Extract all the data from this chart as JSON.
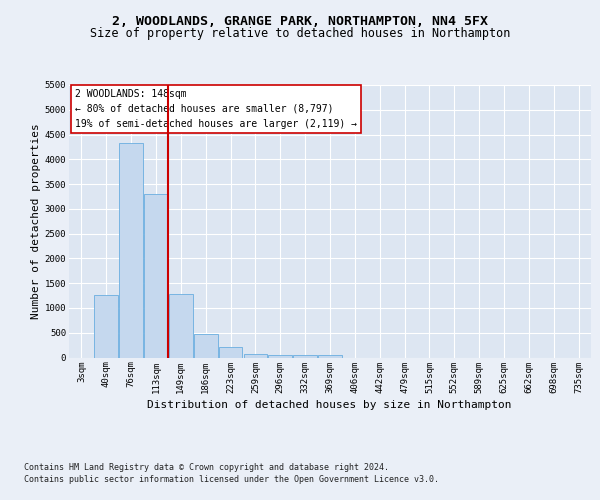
{
  "title": "2, WOODLANDS, GRANGE PARK, NORTHAMPTON, NN4 5FX",
  "subtitle": "Size of property relative to detached houses in Northampton",
  "xlabel": "Distribution of detached houses by size in Northampton",
  "ylabel": "Number of detached properties",
  "footnote1": "Contains HM Land Registry data © Crown copyright and database right 2024.",
  "footnote2": "Contains public sector information licensed under the Open Government Licence v3.0.",
  "bar_labels": [
    "3sqm",
    "40sqm",
    "76sqm",
    "113sqm",
    "149sqm",
    "186sqm",
    "223sqm",
    "259sqm",
    "296sqm",
    "332sqm",
    "369sqm",
    "406sqm",
    "442sqm",
    "479sqm",
    "515sqm",
    "552sqm",
    "589sqm",
    "625sqm",
    "662sqm",
    "698sqm",
    "735sqm"
  ],
  "bar_values": [
    0,
    1270,
    4320,
    3300,
    1280,
    480,
    215,
    80,
    60,
    55,
    50,
    0,
    0,
    0,
    0,
    0,
    0,
    0,
    0,
    0,
    0
  ],
  "bar_color": "#c5d8ee",
  "bar_edge_color": "#6aaee0",
  "vline_color": "#cc0000",
  "vline_xidx": 3,
  "annotation_line1": "2 WOODLANDS: 148sqm",
  "annotation_line2": "← 80% of detached houses are smaller (8,797)",
  "annotation_line3": "19% of semi-detached houses are larger (2,119) →",
  "annotation_box_edgecolor": "#cc0000",
  "ylim": [
    0,
    5500
  ],
  "yticks": [
    0,
    500,
    1000,
    1500,
    2000,
    2500,
    3000,
    3500,
    4000,
    4500,
    5000,
    5500
  ],
  "fig_bg_color": "#eaeff7",
  "plot_bg_color": "#dde6f2",
  "title_fontsize": 9.5,
  "subtitle_fontsize": 8.5,
  "axis_label_fontsize": 8,
  "tick_fontsize": 6.5,
  "annotation_fontsize": 7,
  "footnote_fontsize": 6
}
